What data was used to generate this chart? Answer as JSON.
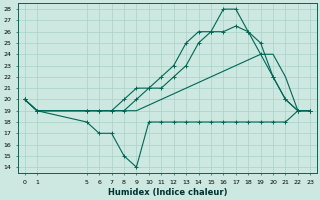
{
  "xlabel": "Humidex (Indice chaleur)",
  "bg_color": "#cce8e0",
  "grid_color": "#aad0c8",
  "line_color": "#006655",
  "ylim": [
    13.5,
    28.5
  ],
  "xlim": [
    -0.5,
    23.5
  ],
  "yticks": [
    14,
    15,
    16,
    17,
    18,
    19,
    20,
    21,
    22,
    23,
    24,
    25,
    26,
    27,
    28
  ],
  "xtick_positions": [
    0,
    1,
    5,
    6,
    7,
    8,
    9,
    10,
    11,
    12,
    13,
    14,
    15,
    16,
    17,
    18,
    19,
    20,
    21,
    22,
    23
  ],
  "xtick_labels": [
    "0",
    "1",
    "5",
    "6",
    "7",
    "8",
    "9",
    "10",
    "11",
    "12",
    "13",
    "14",
    "15",
    "16",
    "17",
    "18",
    "19",
    "20",
    "21",
    "22",
    "23"
  ],
  "line1_x": [
    0,
    1,
    5,
    6,
    7,
    8,
    9,
    10,
    11,
    12,
    13,
    14,
    15,
    16,
    17,
    18,
    19,
    20,
    21,
    22,
    23
  ],
  "line1_y": [
    20,
    19,
    18,
    17,
    17,
    15,
    14,
    18,
    18,
    18,
    18,
    18,
    18,
    18,
    18,
    18,
    18,
    18,
    18,
    19,
    19
  ],
  "line2_x": [
    0,
    1,
    5,
    6,
    7,
    8,
    9,
    10,
    11,
    12,
    13,
    14,
    15,
    16,
    17,
    18,
    19,
    20,
    21,
    22,
    23
  ],
  "line2_y": [
    20,
    19,
    19,
    19,
    19,
    19,
    19,
    19.5,
    20,
    20.5,
    21,
    21.5,
    22,
    22.5,
    23,
    23.5,
    24,
    24,
    22,
    19,
    19
  ],
  "line3_x": [
    0,
    1,
    5,
    6,
    7,
    8,
    9,
    10,
    11,
    12,
    13,
    14,
    15,
    16,
    17,
    18,
    19,
    20,
    21,
    22,
    23
  ],
  "line3_y": [
    20,
    19,
    19,
    19,
    19,
    20,
    21,
    21,
    21,
    22,
    23,
    25,
    26,
    26,
    26.5,
    26,
    25,
    22,
    20,
    19,
    19
  ],
  "line4_x": [
    0,
    1,
    5,
    6,
    7,
    8,
    9,
    10,
    11,
    12,
    13,
    14,
    15,
    16,
    17,
    18,
    19,
    20,
    21,
    22,
    23
  ],
  "line4_y": [
    20,
    19,
    19,
    19,
    19,
    19,
    20,
    21,
    22,
    23,
    25,
    26,
    26,
    28,
    28,
    26,
    24,
    22,
    20,
    19,
    19
  ]
}
